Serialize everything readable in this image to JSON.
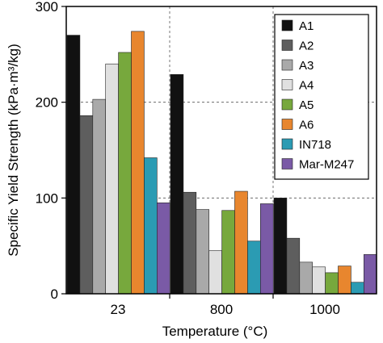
{
  "chart_data": {
    "type": "bar",
    "xlabel": "Temperature  (°C)",
    "ylabel": "Specific Yield Strength  (kPa·m³/kg)",
    "ylim": [
      0,
      300
    ],
    "yticks": [
      0,
      100,
      200,
      300
    ],
    "categories": [
      "23",
      "800",
      "1000"
    ],
    "grid": true,
    "legend_position": "top-right",
    "series": [
      {
        "name": "A1",
        "color": "#111111",
        "values": [
          270,
          229,
          100
        ]
      },
      {
        "name": "A2",
        "color": "#5e5e5e",
        "values": [
          186,
          106,
          58
        ]
      },
      {
        "name": "A3",
        "color": "#a9a9a9",
        "values": [
          203,
          88,
          33
        ]
      },
      {
        "name": "A4",
        "color": "#e0e0e0",
        "values": [
          240,
          45,
          28
        ]
      },
      {
        "name": "A5",
        "color": "#77a83d",
        "values": [
          252,
          87,
          22
        ]
      },
      {
        "name": "A6",
        "color": "#e8862e",
        "values": [
          274,
          107,
          29
        ]
      },
      {
        "name": "IN718",
        "color": "#2b9bb3",
        "values": [
          142,
          55,
          12
        ]
      },
      {
        "name": "Mar-M247",
        "color": "#7a5aa6",
        "values": [
          95,
          94,
          41
        ]
      }
    ]
  }
}
